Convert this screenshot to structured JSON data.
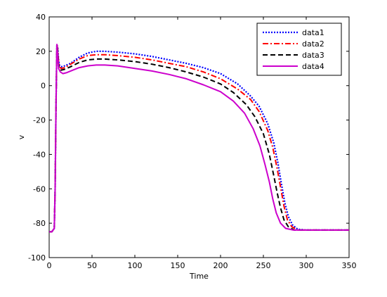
{
  "chart_data": {
    "type": "line",
    "title": "",
    "xlabel": "Time",
    "ylabel": "v",
    "xlim": [
      0,
      350
    ],
    "ylim": [
      -100,
      40
    ],
    "xticks": [
      0,
      50,
      100,
      150,
      200,
      250,
      300,
      350
    ],
    "yticks": [
      -100,
      -80,
      -60,
      -40,
      -20,
      0,
      20,
      40
    ],
    "grid": false,
    "legend_position": "top-right",
    "series": [
      {
        "name": "data1",
        "color": "#0000ff",
        "style": "dotted",
        "points": [
          [
            0,
            -85
          ],
          [
            3,
            -85
          ],
          [
            6,
            -83
          ],
          [
            7,
            -60
          ],
          [
            8,
            -10
          ],
          [
            9,
            24
          ],
          [
            10,
            22
          ],
          [
            11,
            15
          ],
          [
            12,
            12
          ],
          [
            14,
            11
          ],
          [
            18,
            11.5
          ],
          [
            25,
            13
          ],
          [
            35,
            16.5
          ],
          [
            45,
            19
          ],
          [
            55,
            20
          ],
          [
            65,
            20
          ],
          [
            80,
            19.5
          ],
          [
            100,
            18.5
          ],
          [
            120,
            17
          ],
          [
            140,
            15
          ],
          [
            160,
            13
          ],
          [
            180,
            10.5
          ],
          [
            200,
            7
          ],
          [
            220,
            1
          ],
          [
            235,
            -6
          ],
          [
            245,
            -12
          ],
          [
            255,
            -22
          ],
          [
            262,
            -33
          ],
          [
            267,
            -45
          ],
          [
            271,
            -57
          ],
          [
            275,
            -68
          ],
          [
            279,
            -76
          ],
          [
            284,
            -81
          ],
          [
            290,
            -83.5
          ],
          [
            300,
            -84
          ],
          [
            320,
            -84
          ],
          [
            350,
            -84
          ]
        ]
      },
      {
        "name": "data2",
        "color": "#ff0000",
        "style": "dashdot",
        "points": [
          [
            0,
            -85
          ],
          [
            3,
            -85
          ],
          [
            6,
            -83
          ],
          [
            7,
            -60
          ],
          [
            8,
            -10
          ],
          [
            9,
            24
          ],
          [
            10,
            21
          ],
          [
            11,
            14
          ],
          [
            12,
            11
          ],
          [
            14,
            10
          ],
          [
            18,
            10.5
          ],
          [
            25,
            12.5
          ],
          [
            35,
            15.5
          ],
          [
            45,
            17.5
          ],
          [
            55,
            18
          ],
          [
            65,
            18
          ],
          [
            80,
            17.5
          ],
          [
            100,
            16.5
          ],
          [
            120,
            15
          ],
          [
            140,
            13
          ],
          [
            160,
            11
          ],
          [
            180,
            8
          ],
          [
            200,
            4
          ],
          [
            220,
            -2
          ],
          [
            235,
            -8
          ],
          [
            245,
            -15
          ],
          [
            255,
            -26
          ],
          [
            261,
            -36
          ],
          [
            266,
            -48
          ],
          [
            270,
            -59
          ],
          [
            274,
            -70
          ],
          [
            278,
            -78
          ],
          [
            283,
            -82
          ],
          [
            290,
            -84
          ],
          [
            300,
            -84
          ],
          [
            320,
            -84
          ],
          [
            350,
            -84
          ]
        ]
      },
      {
        "name": "data3",
        "color": "#000000",
        "style": "dashed",
        "points": [
          [
            0,
            -85
          ],
          [
            3,
            -85
          ],
          [
            6,
            -83
          ],
          [
            7,
            -60
          ],
          [
            8,
            -10
          ],
          [
            9,
            24
          ],
          [
            10,
            20
          ],
          [
            11,
            12
          ],
          [
            12,
            10
          ],
          [
            14,
            9
          ],
          [
            18,
            9.5
          ],
          [
            25,
            11
          ],
          [
            35,
            13.5
          ],
          [
            45,
            15
          ],
          [
            55,
            15.5
          ],
          [
            65,
            15.5
          ],
          [
            80,
            15
          ],
          [
            100,
            14
          ],
          [
            120,
            12.5
          ],
          [
            140,
            10.5
          ],
          [
            160,
            8
          ],
          [
            180,
            5
          ],
          [
            200,
            1
          ],
          [
            215,
            -4
          ],
          [
            230,
            -11
          ],
          [
            240,
            -18
          ],
          [
            250,
            -28
          ],
          [
            257,
            -40
          ],
          [
            262,
            -52
          ],
          [
            266,
            -62
          ],
          [
            270,
            -71
          ],
          [
            274,
            -78
          ],
          [
            279,
            -82
          ],
          [
            286,
            -84
          ],
          [
            300,
            -84
          ],
          [
            320,
            -84
          ],
          [
            350,
            -84
          ]
        ]
      },
      {
        "name": "data4",
        "color": "#cc00cc",
        "style": "solid",
        "points": [
          [
            0,
            -85
          ],
          [
            3,
            -85
          ],
          [
            6,
            -83
          ],
          [
            7,
            -60
          ],
          [
            8,
            -10
          ],
          [
            9,
            24
          ],
          [
            10,
            18
          ],
          [
            11,
            10
          ],
          [
            13,
            8
          ],
          [
            16,
            7
          ],
          [
            20,
            7.5
          ],
          [
            25,
            8.5
          ],
          [
            35,
            10.5
          ],
          [
            45,
            11.5
          ],
          [
            55,
            12
          ],
          [
            65,
            12
          ],
          [
            80,
            11.5
          ],
          [
            100,
            10
          ],
          [
            120,
            8.5
          ],
          [
            140,
            6.5
          ],
          [
            160,
            4
          ],
          [
            180,
            0.5
          ],
          [
            200,
            -3.5
          ],
          [
            215,
            -9
          ],
          [
            228,
            -16
          ],
          [
            238,
            -25
          ],
          [
            246,
            -35
          ],
          [
            252,
            -46
          ],
          [
            257,
            -56
          ],
          [
            261,
            -66
          ],
          [
            265,
            -74
          ],
          [
            270,
            -80
          ],
          [
            276,
            -83
          ],
          [
            285,
            -84
          ],
          [
            300,
            -84
          ],
          [
            320,
            -84
          ],
          [
            350,
            -84
          ]
        ]
      }
    ]
  }
}
